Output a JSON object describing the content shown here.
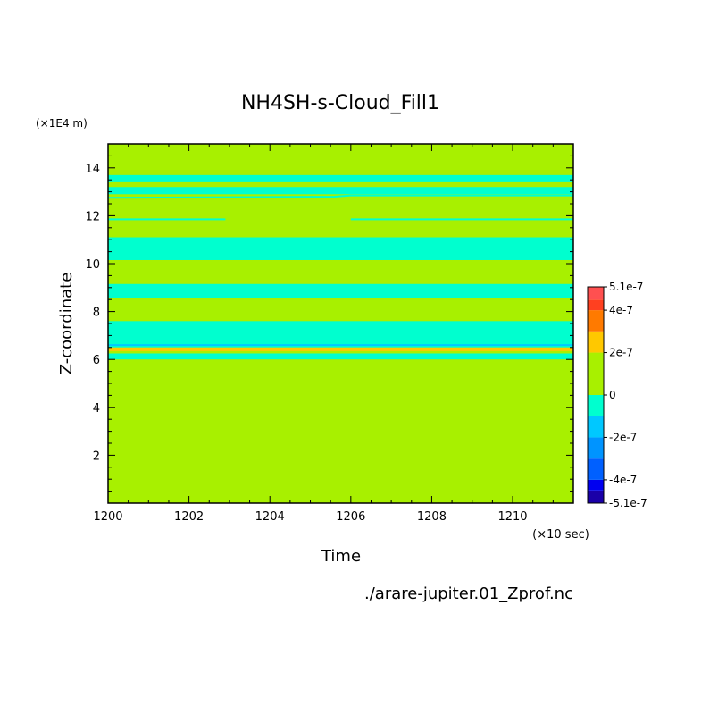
{
  "chart_data": {
    "type": "heatmap",
    "title": "NH4SH-s-Cloud_Fill1",
    "xlabel": "Time",
    "ylabel": "Z-coordinate",
    "x_unit": "(×10 sec)",
    "y_unit": "(×1E4 m)",
    "source_file": "./arare-jupiter.01_Zprof.nc",
    "xlim": [
      1200,
      1211.5
    ],
    "ylim": [
      0,
      15
    ],
    "xticks": [
      1200,
      1202,
      1204,
      1206,
      1208,
      1210
    ],
    "yticks": [
      2,
      4,
      6,
      8,
      10,
      12,
      14
    ],
    "colorbar": {
      "ticks": [
        "5.1e-7",
        "4e-7",
        "2e-7",
        "0",
        "-2e-7",
        "-4e-7",
        "-5.1e-7"
      ],
      "levels": [
        {
          "min": -5.1e-07,
          "max": -4.5e-07,
          "color": "#1a00a8"
        },
        {
          "min": -4.5e-07,
          "max": -4e-07,
          "color": "#0000f0"
        },
        {
          "min": -4e-07,
          "max": -3e-07,
          "color": "#0060ff"
        },
        {
          "min": -3e-07,
          "max": -2e-07,
          "color": "#0094ff"
        },
        {
          "min": -2e-07,
          "max": -1e-07,
          "color": "#00c8ff"
        },
        {
          "min": -1e-07,
          "max": 0,
          "color": "#00ffcf"
        },
        {
          "min": 0,
          "max": 1e-07,
          "color": "#a8f000"
        },
        {
          "min": 1e-07,
          "max": 2e-07,
          "color": "#a8f000"
        },
        {
          "min": 2e-07,
          "max": 3e-07,
          "color": "#ffc800"
        },
        {
          "min": 3e-07,
          "max": 4e-07,
          "color": "#ff7a00"
        },
        {
          "min": 4e-07,
          "max": 4.5e-07,
          "color": "#ff4020"
        },
        {
          "min": 4.5e-07,
          "max": 5.1e-07,
          "color": "#ff5050"
        }
      ]
    },
    "background_color": "#a8f000",
    "bands": [
      {
        "y0": 13.7,
        "y1": 13.4,
        "color": "#00ffcf"
      },
      {
        "y0": 13.2,
        "y1": 12.9,
        "color": "#00ffcf"
      },
      {
        "y0": 10.15,
        "y1": 11.1,
        "color": "#00ffcf"
      },
      {
        "y0": 8.55,
        "y1": 9.15,
        "color": "#00ffcf"
      },
      {
        "y0": 6.5,
        "y1": 7.6,
        "color": "#00ffcf"
      },
      {
        "y0": 6.35,
        "y1": 6.5,
        "color": "#ffc800"
      },
      {
        "y0": 6.0,
        "y1": 6.25,
        "color": "#00ffcf"
      }
    ],
    "contour_lines": [
      {
        "points": [
          [
            1200,
            12.75
          ],
          [
            1205.6,
            12.8
          ],
          [
            1206,
            12.85
          ],
          [
            1211.5,
            12.85
          ]
        ],
        "color": "#00ffcf"
      },
      {
        "points": [
          [
            1200,
            11.85
          ],
          [
            1202.9,
            11.85
          ]
        ],
        "color": "#00ffcf"
      },
      {
        "points": [
          [
            1206,
            11.85
          ],
          [
            1211.5,
            11.85
          ]
        ],
        "color": "#00ffcf"
      },
      {
        "points": [
          [
            1200,
            6.6
          ],
          [
            1211.5,
            6.6
          ]
        ],
        "color": "#00c8ff"
      }
    ]
  }
}
